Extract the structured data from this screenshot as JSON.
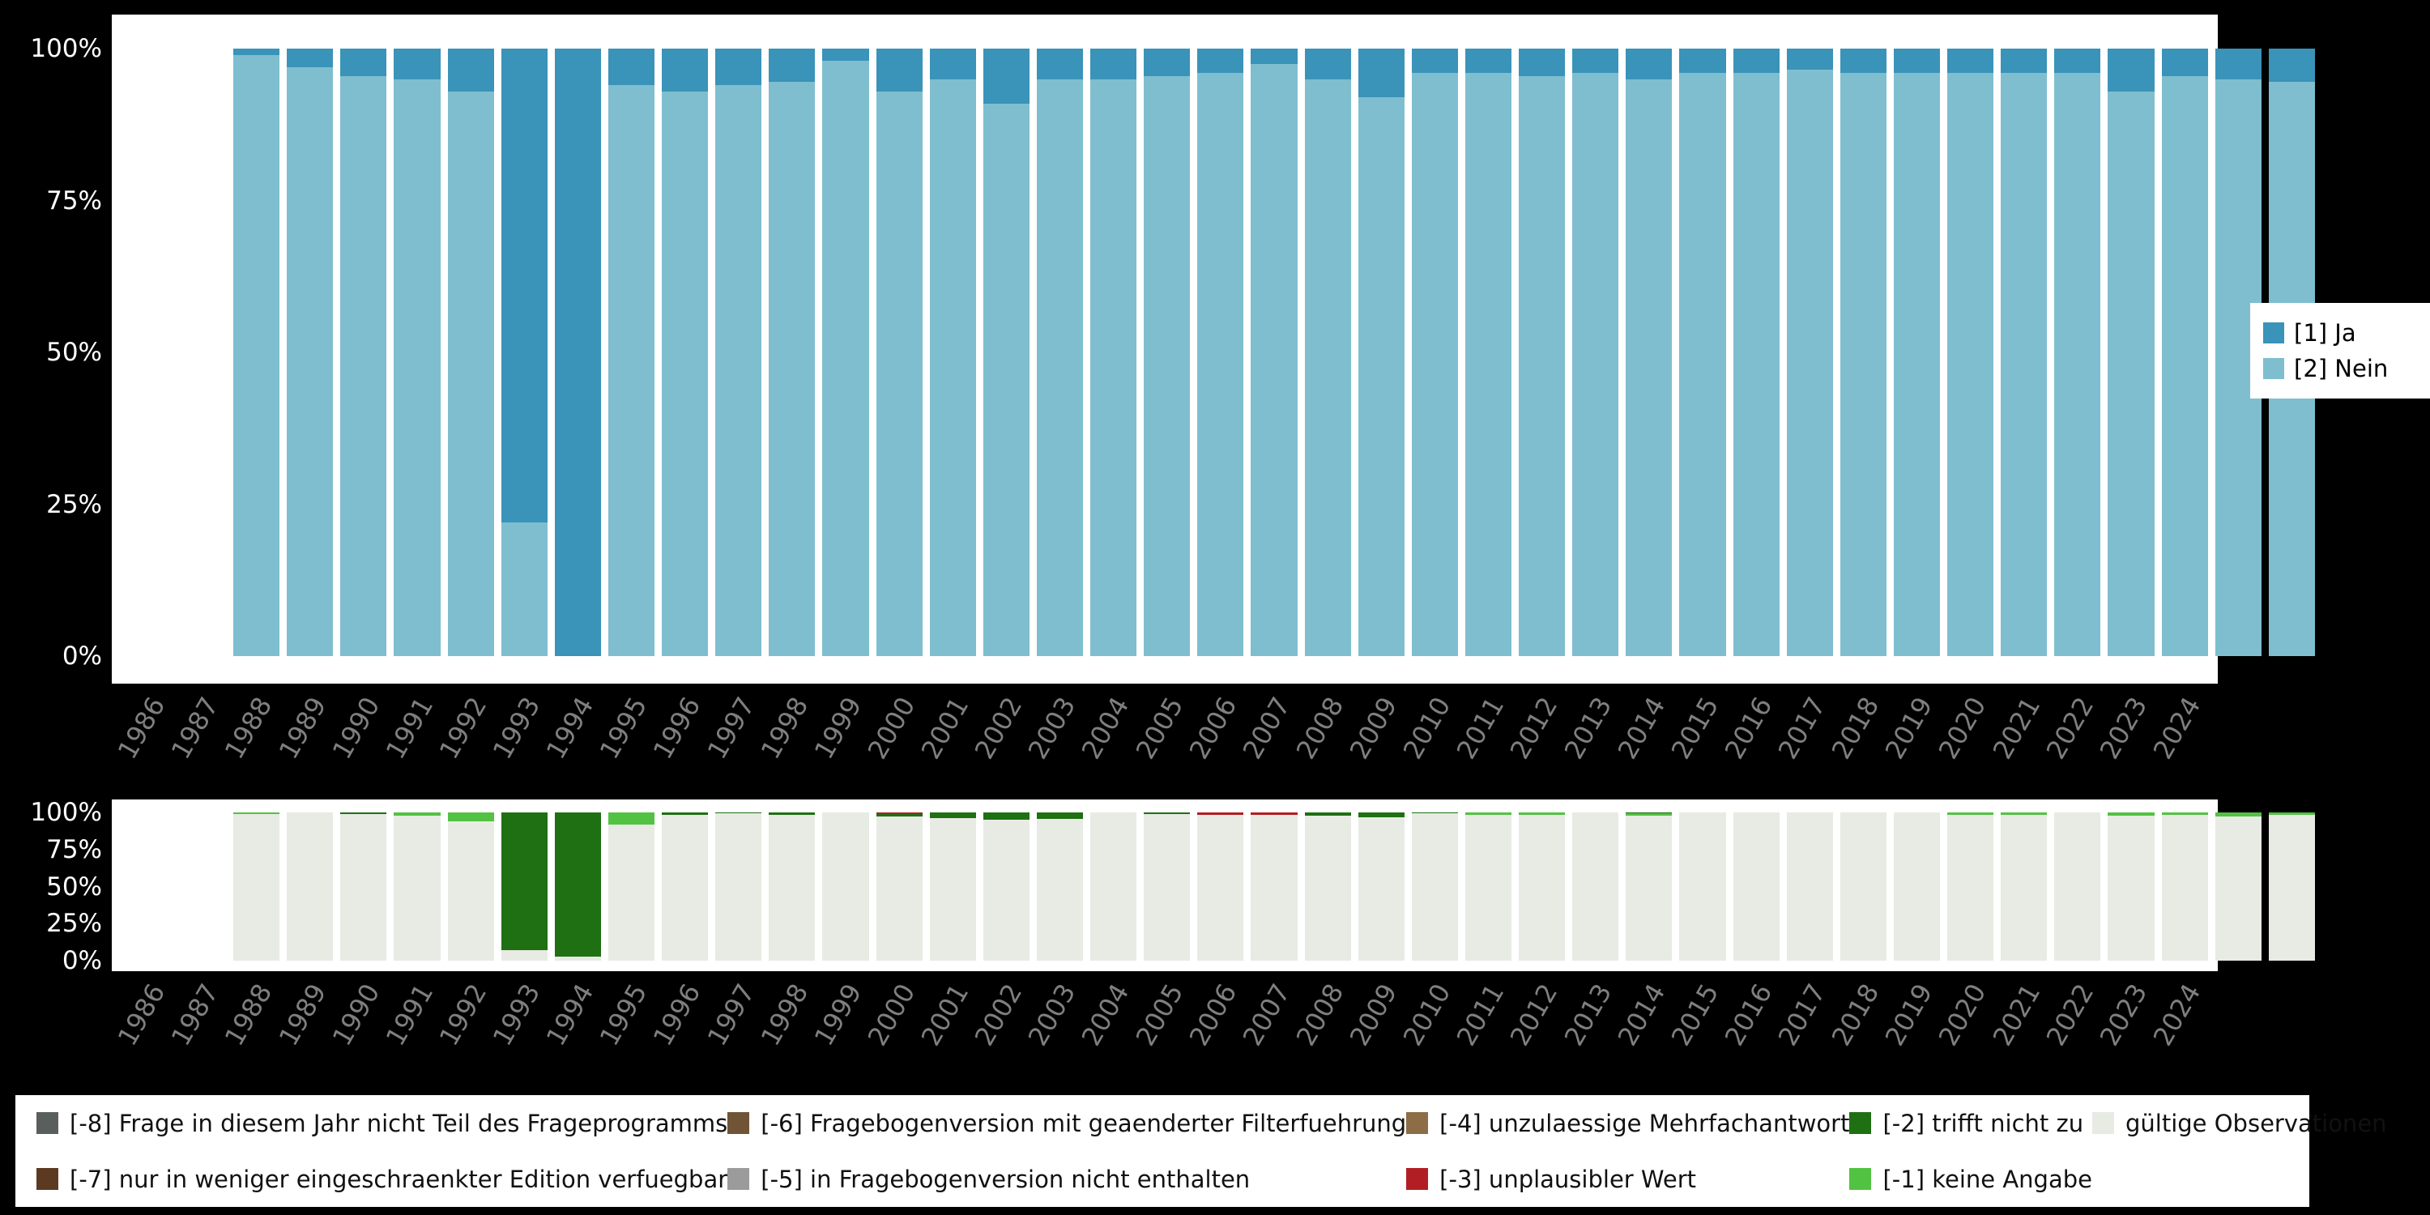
{
  "colors": {
    "background": "#000000",
    "panel": "#ffffff",
    "axis_text": "#ffffff",
    "year_text": "#7f7f7f"
  },
  "chart_data": [
    {
      "name": "antworten",
      "type": "bar",
      "stacked": true,
      "unit": "percent",
      "ylim": [
        0,
        100
      ],
      "grid": false,
      "legend_position": "right",
      "y_ticks_top_to_bottom": [
        "100%",
        "75%",
        "50%",
        "25%",
        "0%"
      ],
      "categories": [
        "1986",
        "1987",
        "1988",
        "1989",
        "1990",
        "1991",
        "1992",
        "1993",
        "1994",
        "1995",
        "1996",
        "1997",
        "1998",
        "1999",
        "2000",
        "2001",
        "2002",
        "2003",
        "2004",
        "2005",
        "2006",
        "2007",
        "2008",
        "2009",
        "2010",
        "2011",
        "2012",
        "2013",
        "2014",
        "2015",
        "2016",
        "2017",
        "2018",
        "2019",
        "2020",
        "2021",
        "2022",
        "2023",
        "2024"
      ],
      "series_bottom_to_top": [
        {
          "name": "[2] Nein",
          "color": "#7fbecf",
          "values": [
            99,
            97,
            95.5,
            95,
            93,
            22,
            0,
            94,
            93,
            94,
            94.5,
            98,
            93,
            95,
            91,
            95,
            95,
            95.5,
            96,
            97.5,
            95,
            92,
            96,
            96,
            95.5,
            96,
            95,
            96,
            96,
            96.5,
            96,
            96,
            96,
            96,
            96,
            93,
            95.5,
            95,
            94.5
          ]
        },
        {
          "name": "[1] Ja",
          "color": "#3a93b8",
          "values": [
            1,
            3,
            4.5,
            5,
            7,
            78,
            100,
            6,
            7,
            6,
            5.5,
            2,
            7,
            5,
            9,
            5,
            5,
            4.5,
            4,
            2.5,
            5,
            8,
            4,
            4,
            4.5,
            4,
            5,
            4,
            4,
            3.5,
            4,
            4,
            4,
            4,
            4,
            7,
            4.5,
            5,
            5.5
          ]
        }
      ]
    },
    {
      "name": "missings",
      "type": "bar",
      "stacked": true,
      "unit": "percent",
      "ylim": [
        0,
        100
      ],
      "grid": false,
      "legend_position": "bottom",
      "y_ticks_top_to_bottom": [
        "100%",
        "75%",
        "50%",
        "25%",
        "0%"
      ],
      "categories": [
        "1986",
        "1987",
        "1988",
        "1989",
        "1990",
        "1991",
        "1992",
        "1993",
        "1994",
        "1995",
        "1996",
        "1997",
        "1998",
        "1999",
        "2000",
        "2001",
        "2002",
        "2003",
        "2004",
        "2005",
        "2006",
        "2007",
        "2008",
        "2009",
        "2010",
        "2011",
        "2012",
        "2013",
        "2014",
        "2015",
        "2016",
        "2017",
        "2018",
        "2019",
        "2020",
        "2021",
        "2022",
        "2023",
        "2024"
      ],
      "series_bottom_to_top": [
        {
          "name": "gültige Observationen",
          "color": "#e7ebe3",
          "values": [
            99,
            100,
            99,
            98,
            94,
            7,
            3,
            92,
            98.5,
            99.5,
            98.5,
            100,
            97.5,
            96,
            95,
            95.5,
            100,
            99,
            98.5,
            98.5,
            98,
            97,
            99.5,
            98.5,
            98.5,
            100,
            98,
            100,
            100,
            100,
            100,
            100,
            98.5,
            98.5,
            100,
            98,
            98.5,
            97.5,
            98.5
          ]
        },
        {
          "name": "[-1] keine Angabe",
          "color": "#52c242",
          "values": [
            1,
            0,
            0,
            2,
            6,
            0,
            0,
            8,
            0,
            0,
            0,
            0,
            0,
            0,
            0,
            0,
            0,
            0,
            0,
            0,
            0,
            0,
            0,
            1.5,
            1.5,
            0,
            1.5,
            0,
            0,
            0,
            0,
            0,
            1.5,
            1.5,
            0,
            2,
            1.5,
            2.5,
            1.5
          ]
        },
        {
          "name": "[-2] trifft nicht zu",
          "color": "#1e7013",
          "values": [
            0,
            0,
            1,
            0,
            0,
            93,
            97,
            0,
            1.5,
            0.5,
            1.5,
            0,
            1.5,
            4,
            5,
            4.5,
            0,
            1,
            0,
            0,
            2,
            3,
            0.5,
            0,
            0,
            0,
            0.5,
            0,
            0,
            0,
            0,
            0,
            0,
            0,
            0,
            0,
            0,
            0,
            0
          ]
        },
        {
          "name": "[-3] unplausibler Wert",
          "color": "#b11f24",
          "values": [
            0,
            0,
            0,
            0,
            0,
            0,
            0,
            0,
            0,
            0,
            0,
            0,
            1,
            0,
            0,
            0,
            0,
            0,
            1.5,
            1.5,
            0,
            0,
            0,
            0,
            0,
            0,
            0,
            0,
            0,
            0,
            0,
            0,
            0,
            0,
            0,
            0,
            0,
            0,
            0
          ]
        }
      ]
    }
  ],
  "top_legend": {
    "items": [
      {
        "label": "[1] Ja",
        "color": "#3a93b8"
      },
      {
        "label": "[2] Nein",
        "color": "#7fbecf"
      }
    ]
  },
  "bottom_legend": {
    "columns": [
      [
        {
          "label": "[-8] Frage in diesem Jahr nicht Teil des Frageprogramms",
          "color": "#595f5c"
        },
        {
          "label": "[-7] nur in weniger eingeschraenkter Edition verfuegbar",
          "color": "#5b3a21"
        }
      ],
      [
        {
          "label": "[-6] Fragebogenversion mit geaenderter Filterfuehrung",
          "color": "#6f5436"
        },
        {
          "label": "[-5] in Fragebogenversion nicht enthalten",
          "color": "#9b9b9b"
        }
      ],
      [
        {
          "label": "[-4] unzulaessige Mehrfachantwort",
          "color": "#8c6d46"
        },
        {
          "label": "[-3] unplausibler Wert",
          "color": "#b11f24"
        }
      ],
      [
        {
          "label": "[-2] trifft nicht zu",
          "color": "#1e7013"
        },
        {
          "label": "[-1] keine Angabe",
          "color": "#52c242"
        }
      ],
      [
        {
          "label": "gültige Observationen",
          "color": "#e7ebe3"
        }
      ]
    ]
  }
}
